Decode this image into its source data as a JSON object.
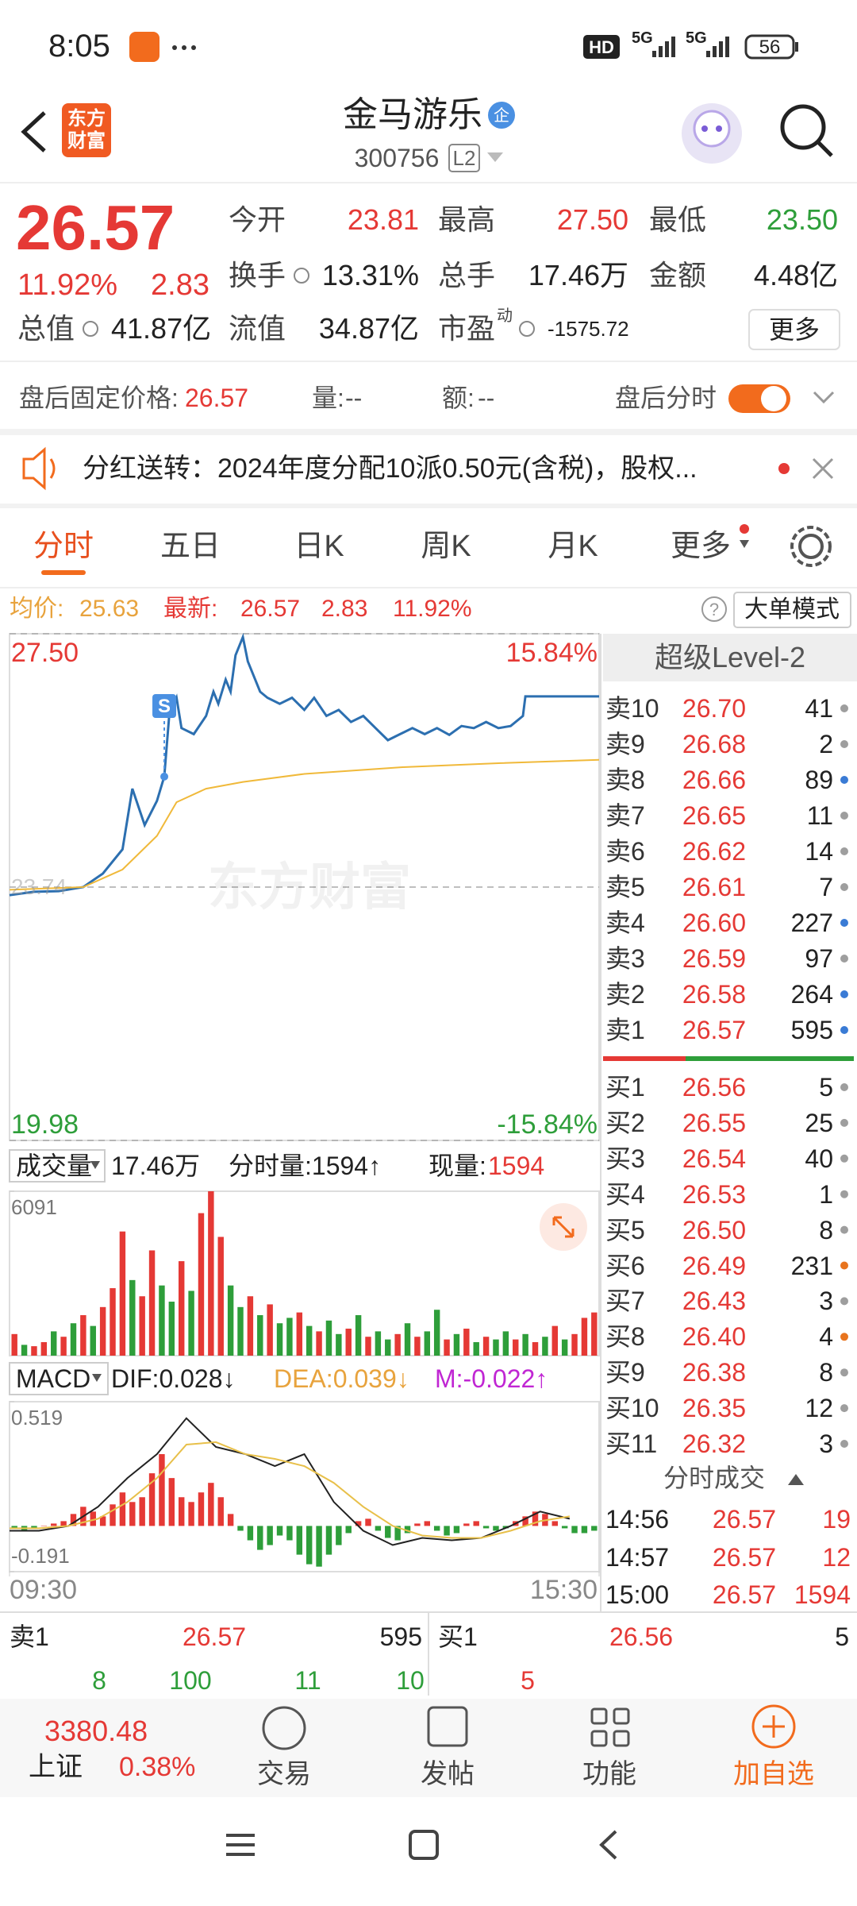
{
  "status_bar": {
    "time": "8:05",
    "hd": "HD",
    "network": "5G",
    "battery": "56"
  },
  "header": {
    "logo": [
      "东方",
      "财富"
    ],
    "title": "金马游乐",
    "badge": "企",
    "code": "300756",
    "level": "L2"
  },
  "quote": {
    "price": "26.57",
    "change_pct": "11.92%",
    "change": "2.83",
    "stats": [
      [
        {
          "label": "今开",
          "value": "23.81"
        },
        {
          "label": "最高",
          "value": "27.50"
        },
        {
          "label": "最低",
          "value": "23.50"
        }
      ],
      [
        {
          "label": "换手",
          "value": "13.31%"
        },
        {
          "label": "总手",
          "value": "17.46万"
        },
        {
          "label": "金额",
          "value": "4.48亿"
        }
      ],
      [
        {
          "label": "总值",
          "value": "41.87亿"
        },
        {
          "label": "流值",
          "value": "34.87亿"
        },
        {
          "label": "市盈",
          "sup": "动",
          "value": "-1575.72"
        }
      ]
    ],
    "more": "更多"
  },
  "after_hours": {
    "price_label": "盘后固定价格:",
    "price": "26.57",
    "volume_label": "量:",
    "volume": "--",
    "amount_label": "额:",
    "amount": "--",
    "toggle_label": "盘后分时"
  },
  "notice": {
    "text": "分红送转：2024年度分配10派0.50元(含税)，股权..."
  },
  "tabs": [
    "分时",
    "五日",
    "日K",
    "周K",
    "月K",
    "更多"
  ],
  "price_info": {
    "avg_label": "均价:",
    "avg": "25.63",
    "last_label": "最新:",
    "last": "26.57",
    "change": "2.83",
    "change_pct": "11.92%",
    "help": "?",
    "big_order": "大单模式"
  },
  "volume_header": {
    "label": "成交量",
    "total": "17.46万",
    "minute_volume": "分时量:1594↑",
    "current_label": "现量:",
    "current": "1594"
  },
  "macd_header": {
    "label": "MACD",
    "dif": "DIF:0.028↓",
    "dea": "DEA:0.039↓",
    "m": "M:-0.022↑"
  },
  "level2": {
    "title": "超级Level-2",
    "asks": [
      {
        "label": "卖10",
        "price": "26.70",
        "qty": "41",
        "dot": "#9e9e9e"
      },
      {
        "label": "卖9",
        "price": "26.68",
        "qty": "2",
        "dot": "#9e9e9e"
      },
      {
        "label": "卖8",
        "price": "26.66",
        "qty": "89",
        "dot": "#3a7bd5"
      },
      {
        "label": "卖7",
        "price": "26.65",
        "qty": "11",
        "dot": "#9e9e9e"
      },
      {
        "label": "卖6",
        "price": "26.62",
        "qty": "14",
        "dot": "#9e9e9e"
      },
      {
        "label": "卖5",
        "price": "26.61",
        "qty": "7",
        "dot": "#9e9e9e"
      },
      {
        "label": "卖4",
        "price": "26.60",
        "qty": "227",
        "dot": "#3a7bd5"
      },
      {
        "label": "卖3",
        "price": "26.59",
        "qty": "97",
        "dot": "#9e9e9e"
      },
      {
        "label": "卖2",
        "price": "26.58",
        "qty": "264",
        "dot": "#3a7bd5"
      },
      {
        "label": "卖1",
        "price": "26.57",
        "qty": "595",
        "dot": "#3a7bd5"
      }
    ],
    "bids": [
      {
        "label": "买1",
        "price": "26.56",
        "qty": "5",
        "dot": "#9e9e9e"
      },
      {
        "label": "买2",
        "price": "26.55",
        "qty": "25",
        "dot": "#9e9e9e"
      },
      {
        "label": "买3",
        "price": "26.54",
        "qty": "40",
        "dot": "#9e9e9e"
      },
      {
        "label": "买4",
        "price": "26.53",
        "qty": "1",
        "dot": "#9e9e9e"
      },
      {
        "label": "买5",
        "price": "26.50",
        "qty": "8",
        "dot": "#9e9e9e"
      },
      {
        "label": "买6",
        "price": "26.49",
        "qty": "231",
        "dot": "#e8741e"
      },
      {
        "label": "买7",
        "price": "26.43",
        "qty": "3",
        "dot": "#9e9e9e"
      },
      {
        "label": "买8",
        "price": "26.40",
        "qty": "4",
        "dot": "#e8741e"
      },
      {
        "label": "买9",
        "price": "26.38",
        "qty": "8",
        "dot": "#9e9e9e"
      },
      {
        "label": "买10",
        "price": "26.35",
        "qty": "12",
        "dot": "#9e9e9e"
      },
      {
        "label": "买11",
        "price": "26.32",
        "qty": "3",
        "dot": "#9e9e9e"
      }
    ],
    "ticks_title": "分时成交",
    "ticks": [
      [
        "14:56",
        "26.57",
        "19"
      ],
      [
        "14:57",
        "26.57",
        "12"
      ],
      [
        "15:00",
        "26.57",
        "1594"
      ]
    ]
  },
  "bottom_quote": {
    "ask": [
      "卖1",
      "26.57",
      "595"
    ],
    "bid": [
      "买1",
      "26.56",
      "5"
    ],
    "ask_detail": [
      "8",
      "100",
      "11",
      "10"
    ],
    "bid_detail": [
      "5"
    ]
  },
  "nav": {
    "index_value": "3380.48",
    "index_name": "上证",
    "index_change": "0.38%",
    "items": [
      "交易",
      "发帖",
      "功能",
      "加自选"
    ]
  },
  "chart_data": [
    {
      "type": "line",
      "xlim": [
        0,
        240
      ],
      "ylim": [
        19.98,
        27.5
      ],
      "yticks": [
        19.98,
        23.74,
        {
          "value": 27.5,
          "label": "27.50"
        }
      ],
      "pct_labels": [
        "15.84%",
        "-15.84%"
      ],
      "watermark": "东方财富",
      "marker": {
        "x": 63,
        "value": 25.38,
        "label": "S"
      },
      "series": [
        {
          "color": "#2c6fb0",
          "x": [
            0,
            10,
            20,
            30,
            38,
            46,
            50,
            55,
            60,
            63,
            65,
            68,
            70,
            75,
            80,
            83,
            85,
            88,
            90,
            92,
            95,
            97,
            100,
            102,
            105,
            110,
            115,
            120,
            124,
            129,
            134,
            139,
            144,
            149,
            154,
            159,
            164,
            169,
            174,
            179,
            184,
            189,
            194,
            199,
            204,
            209,
            210,
            240
          ],
          "values": [
            23.62,
            23.67,
            23.68,
            23.74,
            23.94,
            24.3,
            25.2,
            24.66,
            25.02,
            25.38,
            26.28,
            26.55,
            26.1,
            26.01,
            26.28,
            26.64,
            26.46,
            26.82,
            26.64,
            27.18,
            27.45,
            27.09,
            26.82,
            26.64,
            26.55,
            26.46,
            26.55,
            26.37,
            26.55,
            26.28,
            26.37,
            26.19,
            26.28,
            26.1,
            25.92,
            26.01,
            26.1,
            26.01,
            26.1,
            26.0,
            26.13,
            26.1,
            26.19,
            26.1,
            26.13,
            26.28,
            26.57,
            26.57
          ]
        },
        {
          "color": "#f0b93a",
          "x": [
            0,
            30,
            46,
            60,
            68,
            80,
            95,
            120,
            160,
            200,
            240
          ],
          "values": [
            23.7,
            23.74,
            24.0,
            24.5,
            25.0,
            25.2,
            25.3,
            25.42,
            25.52,
            25.58,
            25.63
          ]
        }
      ]
    },
    {
      "type": "bar",
      "xlim": [
        0,
        240
      ],
      "ylim": [
        0,
        6091
      ],
      "yticks": [
        6091
      ],
      "x": [
        2,
        6,
        10,
        14,
        18,
        22,
        26,
        30,
        34,
        38,
        42,
        46,
        50,
        54,
        58,
        62,
        66,
        70,
        74,
        78,
        82,
        86,
        90,
        94,
        98,
        102,
        106,
        110,
        114,
        118,
        122,
        126,
        130,
        134,
        138,
        142,
        146,
        150,
        154,
        158,
        162,
        166,
        170,
        174,
        178,
        182,
        186,
        190,
        194,
        198,
        202,
        206,
        210,
        214,
        218,
        222,
        226,
        230,
        234,
        238
      ],
      "values": [
        800,
        400,
        350,
        500,
        900,
        700,
        1200,
        1500,
        1100,
        1800,
        2500,
        4600,
        2800,
        2200,
        3900,
        2600,
        2000,
        3500,
        2400,
        5280,
        6091,
        4400,
        2600,
        1800,
        2200,
        1500,
        1900,
        1200,
        1400,
        1600,
        1100,
        900,
        1300,
        800,
        1000,
        1500,
        700,
        900,
        600,
        800,
        1200,
        700,
        900,
        1700,
        600,
        800,
        1000,
        500,
        700,
        600,
        900,
        600,
        800,
        500,
        700,
        1100,
        600,
        800,
        1400,
        1600
      ],
      "colors": [
        "#e53935",
        "#2e9e3a",
        "#e53935",
        "#e53935",
        "#2e9e3a",
        "#e53935",
        "#2e9e3a",
        "#e53935",
        "#2e9e3a",
        "#e53935",
        "#e53935",
        "#e53935",
        "#2e9e3a",
        "#e53935",
        "#e53935",
        "#2e9e3a",
        "#2e9e3a",
        "#e53935",
        "#2e9e3a",
        "#e53935",
        "#e53935",
        "#e53935",
        "#2e9e3a",
        "#2e9e3a",
        "#e53935",
        "#2e9e3a",
        "#e53935",
        "#2e9e3a",
        "#2e9e3a",
        "#e53935",
        "#2e9e3a",
        "#e53935",
        "#2e9e3a",
        "#2e9e3a",
        "#e53935",
        "#2e9e3a",
        "#e53935",
        "#2e9e3a",
        "#2e9e3a",
        "#e53935",
        "#2e9e3a",
        "#e53935",
        "#2e9e3a",
        "#2e9e3a",
        "#e53935",
        "#2e9e3a",
        "#e53935",
        "#2e9e3a",
        "#e53935",
        "#2e9e3a",
        "#2e9e3a",
        "#e53935",
        "#2e9e3a",
        "#e53935",
        "#2e9e3a",
        "#e53935",
        "#2e9e3a",
        "#e53935",
        "#e53935",
        "#e53935"
      ]
    },
    {
      "type": "bar",
      "xlim": [
        0,
        240
      ],
      "ylim": [
        -0.191,
        0.519
      ],
      "yticks": [
        -0.191,
        0.519
      ],
      "xticks": [
        {
          "value": 0,
          "label": "09:30"
        },
        {
          "value": 240,
          "label": "15:30"
        }
      ],
      "x": [
        2,
        6,
        10,
        14,
        18,
        22,
        26,
        30,
        34,
        38,
        42,
        46,
        50,
        54,
        58,
        62,
        66,
        70,
        74,
        78,
        82,
        86,
        90,
        94,
        98,
        102,
        106,
        110,
        114,
        118,
        122,
        126,
        130,
        134,
        138,
        142,
        146,
        150,
        154,
        158,
        162,
        166,
        170,
        174,
        178,
        182,
        186,
        190,
        194,
        198,
        202,
        206,
        210,
        214,
        218,
        222,
        226,
        230,
        234,
        238
      ],
      "values": [
        -0.01,
        -0.02,
        -0.01,
        0.0,
        0.01,
        0.02,
        0.05,
        0.08,
        0.06,
        0.04,
        0.09,
        0.14,
        0.1,
        0.12,
        0.22,
        0.3,
        0.2,
        0.12,
        0.1,
        0.14,
        0.18,
        0.12,
        0.05,
        -0.02,
        -0.06,
        -0.1,
        -0.08,
        -0.04,
        -0.06,
        -0.12,
        -0.16,
        -0.17,
        -0.12,
        -0.08,
        -0.03,
        0.02,
        0.03,
        -0.02,
        -0.05,
        -0.06,
        -0.03,
        0.01,
        0.02,
        -0.02,
        -0.04,
        -0.03,
        0.01,
        0.02,
        -0.01,
        -0.02,
        -0.01,
        0.02,
        0.04,
        0.06,
        0.05,
        0.02,
        -0.01,
        -0.03,
        -0.03,
        -0.02
      ],
      "series": [
        {
          "color": "#222222",
          "x": [
            0,
            12,
            24,
            36,
            48,
            60,
            72,
            84,
            96,
            108,
            120,
            132,
            144,
            156,
            168,
            180,
            192,
            204,
            216,
            228
          ],
          "values": [
            -0.02,
            -0.02,
            0.0,
            0.08,
            0.2,
            0.3,
            0.45,
            0.33,
            0.3,
            0.25,
            0.3,
            0.1,
            -0.02,
            -0.08,
            -0.05,
            -0.06,
            -0.05,
            0.0,
            0.06,
            0.03
          ]
        },
        {
          "color": "#e8c04a",
          "x": [
            0,
            12,
            24,
            36,
            48,
            60,
            72,
            84,
            96,
            108,
            120,
            132,
            144,
            156,
            168,
            180,
            192,
            204,
            216,
            228
          ],
          "values": [
            -0.01,
            -0.01,
            0.0,
            0.03,
            0.1,
            0.2,
            0.34,
            0.35,
            0.3,
            0.28,
            0.25,
            0.18,
            0.08,
            0.0,
            -0.04,
            -0.05,
            -0.05,
            -0.02,
            0.02,
            0.04
          ]
        }
      ]
    }
  ]
}
